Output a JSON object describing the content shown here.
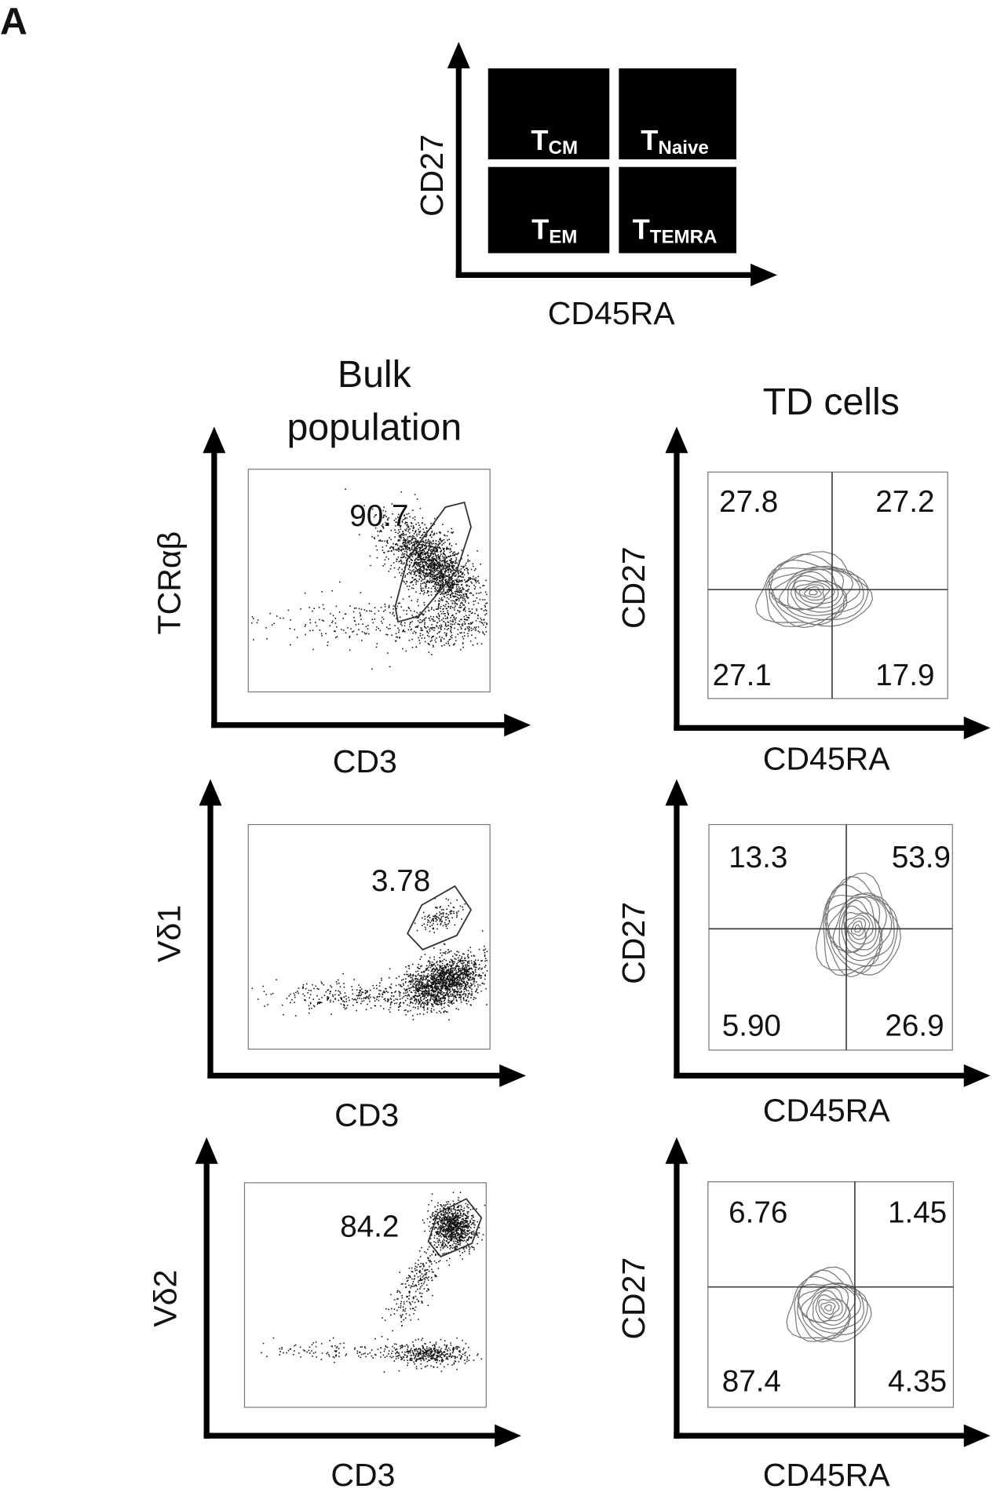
{
  "panel_label": "A",
  "schematic": {
    "y_label": "CD27",
    "x_label": "CD45RA",
    "quadrants": [
      {
        "main": "T",
        "sub": "CM"
      },
      {
        "main": "T",
        "sub": "Naive"
      },
      {
        "main": "T",
        "sub": "EM"
      },
      {
        "main": "T",
        "sub": "TEMRA"
      }
    ]
  },
  "headers": {
    "bulk": [
      "Bulk",
      "population"
    ],
    "td": "TD cells"
  },
  "rows": [
    {
      "bulk": {
        "y_label": "TCRαβ",
        "x_label": "CD3",
        "gate": "90.7"
      },
      "td": {
        "y_label": "CD27",
        "x_label": "CD45RA",
        "quadrants": [
          "27.8",
          "27.2",
          "27.1",
          "17.9"
        ]
      }
    },
    {
      "bulk": {
        "y_label": "Vδ1",
        "x_label": "CD3",
        "gate": "3.78"
      },
      "td": {
        "y_label": "CD27",
        "x_label": "CD45RA",
        "quadrants": [
          "13.3",
          "53.9",
          "5.90",
          "26.9"
        ]
      }
    },
    {
      "bulk": {
        "y_label": "Vδ2",
        "x_label": "CD3",
        "gate": "84.2"
      },
      "td": {
        "y_label": "CD27",
        "x_label": "CD45RA",
        "quadrants": [
          "6.76",
          "1.45",
          "87.4",
          "4.35"
        ]
      }
    }
  ]
}
